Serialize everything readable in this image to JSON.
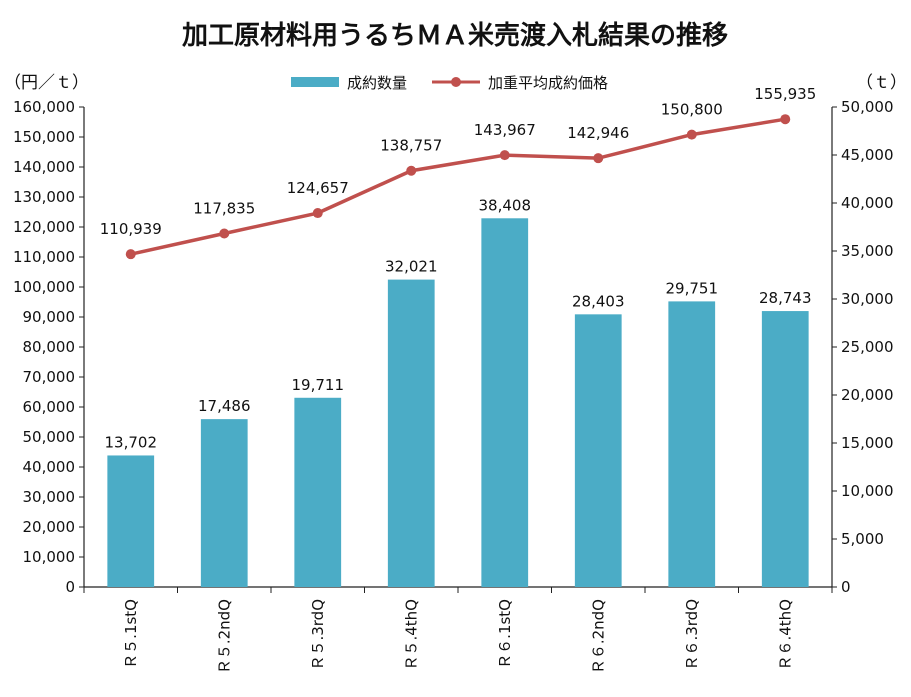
{
  "chart_data": {
    "type": "bar",
    "title": "加工原材料用うるちＭＡ米売渡入札結果の推移",
    "y_left_unit": "（円／ｔ）",
    "y_right_unit": "（ｔ）",
    "categories": [
      "Ｒ５.1stQ",
      "Ｒ５.2ndQ",
      "Ｒ５.3rdQ",
      "Ｒ５.4thQ",
      "Ｒ６.1stQ",
      "Ｒ６.2ndQ",
      "Ｒ６.3rdQ",
      "Ｒ６.4thQ"
    ],
    "y_left_range": [
      0,
      160000
    ],
    "y_left_step": 10000,
    "y_right_range": [
      0,
      50000
    ],
    "y_right_step": 5000,
    "grid": false,
    "legend_position": "top-center",
    "series": [
      {
        "name": "成約数量",
        "type": "bar",
        "axis": "right",
        "color": "#4bacc6",
        "values": [
          13702,
          17486,
          19711,
          32021,
          38408,
          28403,
          29751,
          28743
        ],
        "labels": [
          "13,702",
          "17,486",
          "19,711",
          "32,021",
          "38,408",
          "28,403",
          "29,751",
          "28,743"
        ]
      },
      {
        "name": "加重平均成約価格",
        "type": "line",
        "axis": "left",
        "color": "#c0504d",
        "values": [
          110939,
          117835,
          124657,
          138757,
          143967,
          142946,
          150800,
          155935
        ],
        "labels": [
          "110,939",
          "117,835",
          "124,657",
          "138,757",
          "143,967",
          "142,946",
          "150,800",
          "155,935"
        ]
      }
    ]
  }
}
